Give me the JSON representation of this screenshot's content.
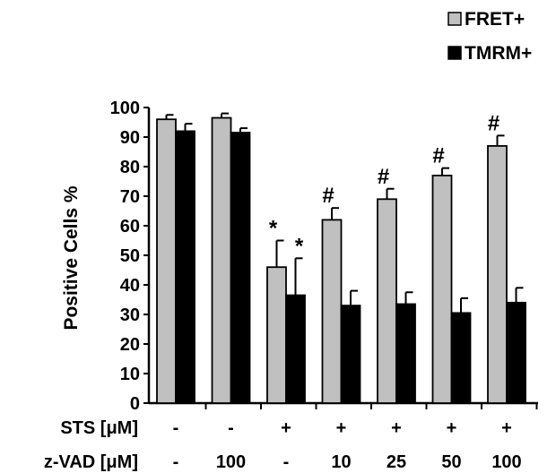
{
  "chart_data": {
    "type": "bar",
    "ylabel": "Positive Cells %",
    "ylim": [
      0,
      100
    ],
    "yticks": [
      "0",
      "10",
      "20",
      "30",
      "40",
      "50",
      "60",
      "70",
      "80",
      "90",
      "100"
    ],
    "grid": false,
    "legend_position": "top-right",
    "series": [
      {
        "name": "FRET+",
        "color": "#c0c0c0",
        "values": [
          96,
          96.5,
          46,
          62,
          69,
          77,
          87
        ],
        "errors": [
          1.5,
          1.5,
          9,
          4,
          3.5,
          2.5,
          3.5
        ],
        "annotations": [
          "",
          "",
          "*",
          "#",
          "#",
          "#",
          "#"
        ]
      },
      {
        "name": "TMRM+",
        "color": "#000000",
        "values": [
          92,
          91.5,
          36.5,
          33,
          33.5,
          30.5,
          34
        ],
        "errors": [
          2.5,
          1.5,
          12.5,
          5,
          4,
          5,
          5
        ],
        "annotations": [
          "",
          "",
          "*",
          "",
          "",
          "",
          ""
        ]
      }
    ],
    "row_labels": [
      {
        "label": "STS [μM]",
        "values": [
          "-",
          "-",
          "+",
          "+",
          "+",
          "+",
          "+"
        ]
      },
      {
        "label": "z-VAD [μM]",
        "values": [
          "-",
          "100",
          "-",
          "10",
          "25",
          "50",
          "100"
        ]
      }
    ]
  }
}
